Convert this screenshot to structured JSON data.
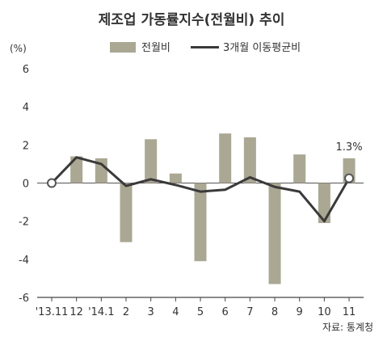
{
  "chart_data": {
    "type": "bar",
    "title": "제조업 가동률지수(전월비) 추이",
    "ylabel": "(%)",
    "xlabel": "",
    "categories": [
      "'13.11",
      "12",
      "'14.1",
      "2",
      "3",
      "4",
      "5",
      "6",
      "7",
      "8",
      "9",
      "10",
      "11"
    ],
    "ylim": [
      -6,
      6
    ],
    "yticks": [
      6,
      4,
      2,
      0,
      -2,
      -4,
      -6
    ],
    "grid": false,
    "legend_position": "top",
    "series": [
      {
        "name": "전월비",
        "type": "bar",
        "color": "#aaa793",
        "values": [
          null,
          1.4,
          1.3,
          -3.1,
          2.3,
          0.5,
          -4.1,
          2.6,
          2.4,
          -5.3,
          1.5,
          -2.1,
          1.3
        ]
      },
      {
        "name": "3개월 이동평균비",
        "type": "line",
        "color": "#3a3a3a",
        "values": [
          0.0,
          1.35,
          1.0,
          -0.15,
          0.2,
          -0.1,
          -0.45,
          -0.35,
          0.3,
          -0.2,
          -0.45,
          -2.0,
          0.25
        ]
      }
    ],
    "annotations": [
      {
        "category": "11",
        "text": "1.3%"
      }
    ],
    "source": "자료: 통계청"
  }
}
